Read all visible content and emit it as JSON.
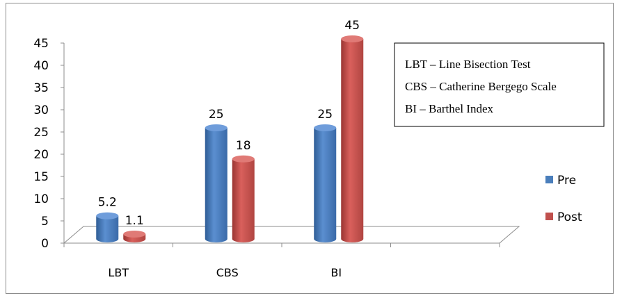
{
  "chart_data": {
    "type": "bar",
    "categories": [
      "LBT",
      "CBS",
      "BI"
    ],
    "series": [
      {
        "name": "Pre",
        "values": [
          5.2,
          25,
          25
        ],
        "color": "#4a7ebb"
      },
      {
        "name": "Post",
        "values": [
          1.1,
          18,
          45
        ],
        "color": "#c0504d"
      }
    ],
    "y_ticks": [
      0,
      5,
      10,
      15,
      20,
      25,
      30,
      35,
      40,
      45
    ],
    "ylim": [
      0,
      45
    ],
    "data_labels": [
      "5.2",
      "1.1",
      "25",
      "18",
      "25",
      "45"
    ],
    "legend_position": "right",
    "grid": false,
    "style": "3d-cylinder",
    "annotation_lines": [
      "LBT – Line Bisection Test",
      "CBS – Catherine Bergego Scale",
      "BI – Barthel Index"
    ]
  }
}
